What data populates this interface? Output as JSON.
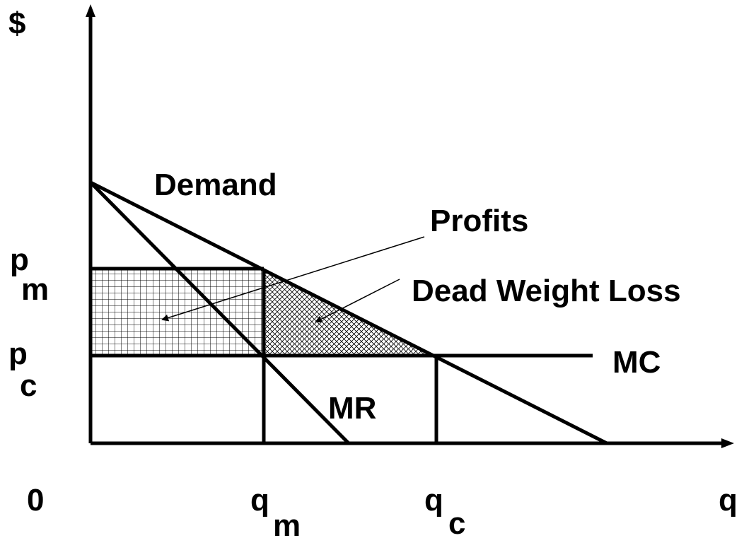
{
  "axes": {
    "y_label": "$",
    "x_label": "q",
    "origin": "0"
  },
  "curves": {
    "demand": "Demand",
    "marginal_revenue": "MR",
    "marginal_cost": "MC"
  },
  "regions": {
    "profits": "Profits",
    "dead_weight_loss": "Dead Weight Loss"
  },
  "prices": [
    {
      "symbol": "p",
      "subscript": "m"
    },
    {
      "symbol": "p",
      "subscript": "c"
    }
  ],
  "quantities": [
    {
      "symbol": "q",
      "subscript": "m"
    },
    {
      "symbol": "q",
      "subscript": "c"
    }
  ]
}
